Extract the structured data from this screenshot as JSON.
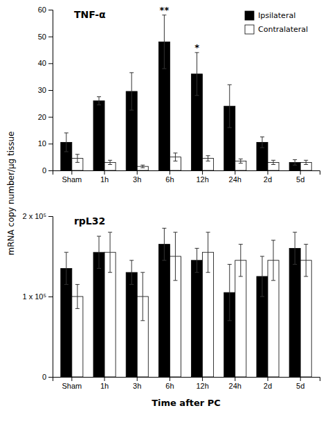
{
  "chart_data": [
    {
      "type": "bar",
      "title": "TNF-α",
      "ylabel": "mRNA copy number/μg tissue",
      "categories": [
        "Sham",
        "1h",
        "3h",
        "6h",
        "12h",
        "24h",
        "2d",
        "5d"
      ],
      "series": [
        {
          "name": "Ipsilateral",
          "color": "#000000",
          "values": [
            10.5,
            26.0,
            29.5,
            48.0,
            36.0,
            24.0,
            10.5,
            3.0
          ],
          "errors": [
            3.5,
            1.5,
            7.0,
            10.0,
            8.0,
            8.0,
            2.0,
            1.0
          ]
        },
        {
          "name": "Contralateral",
          "color": "#ffffff",
          "values": [
            4.5,
            3.0,
            1.5,
            5.0,
            4.5,
            3.5,
            3.0,
            3.0
          ],
          "errors": [
            1.5,
            0.8,
            0.5,
            1.5,
            1.0,
            0.8,
            0.8,
            0.8
          ]
        }
      ],
      "ylim": [
        0,
        60
      ],
      "yticks": [
        0,
        10,
        20,
        30,
        40,
        50,
        60
      ],
      "legend": "upper right",
      "annotations": [
        {
          "text": "**",
          "x": "6h",
          "series": "Ipsilateral"
        },
        {
          "text": "*",
          "x": "12h",
          "series": "Ipsilateral"
        }
      ]
    },
    {
      "type": "bar",
      "title": "rpL32",
      "xlabel": "Time after PC",
      "categories": [
        "Sham",
        "1h",
        "3h",
        "6h",
        "12h",
        "24h",
        "2d",
        "5d"
      ],
      "series": [
        {
          "color": "#000000",
          "values": [
            135000,
            155000,
            130000,
            165000,
            145000,
            105000,
            125000,
            160000
          ],
          "errors": [
            20000,
            20000,
            15000,
            20000,
            15000,
            35000,
            25000,
            20000
          ]
        },
        {
          "color": "#ffffff",
          "values": [
            100000,
            155000,
            100000,
            150000,
            155000,
            145000,
            145000,
            145000
          ],
          "errors": [
            15000,
            25000,
            30000,
            30000,
            25000,
            20000,
            25000,
            20000
          ]
        }
      ],
      "ylim": [
        0,
        200000
      ],
      "yticks": [
        0,
        {
          "value": 100000,
          "label": "1 x 10⁵"
        },
        {
          "value": 200000,
          "label": "2 x 10⁵"
        }
      ]
    }
  ]
}
